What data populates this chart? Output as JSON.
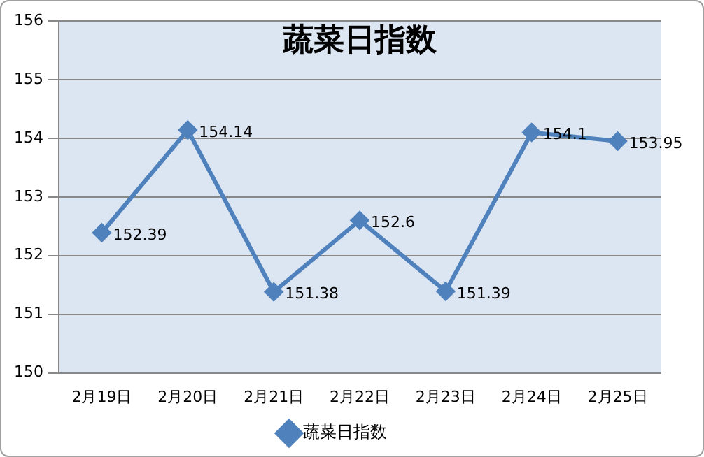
{
  "chart_data": {
    "type": "line",
    "title": "蔬菜日指数",
    "categories": [
      "2月19日",
      "2月20日",
      "2月21日",
      "2月22日",
      "2月23日",
      "2月24日",
      "2月25日"
    ],
    "series": [
      {
        "name": "蔬菜日指数",
        "color": "#4f81bd",
        "values": [
          152.39,
          154.14,
          151.38,
          152.6,
          151.39,
          154.1,
          153.95
        ]
      }
    ],
    "ylim": [
      150,
      156
    ],
    "yticks": [
      150,
      151,
      152,
      153,
      154,
      155,
      156
    ],
    "grid": "y",
    "legend": "bottom",
    "marker": "diamond",
    "line_style": "solid",
    "data_labels": true
  }
}
